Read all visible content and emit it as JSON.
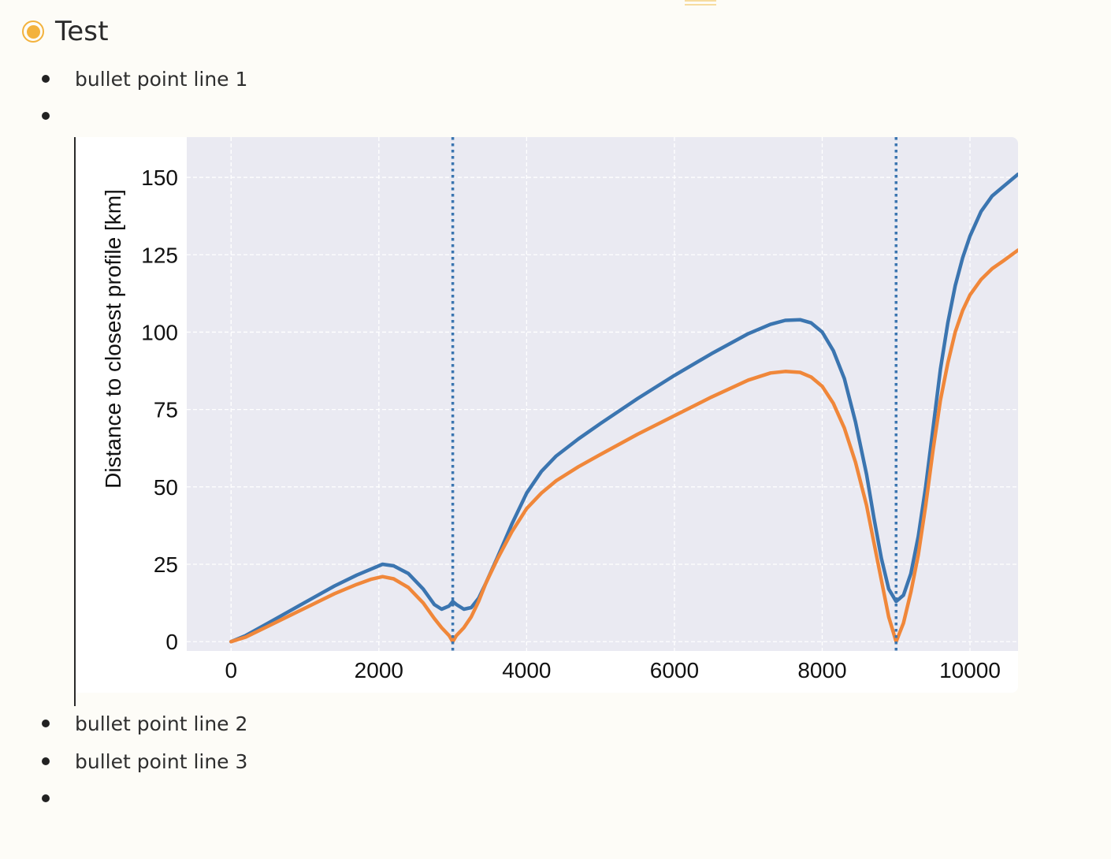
{
  "heading": {
    "title": "Test",
    "icon": "radio-circle-icon",
    "icon_color": "#f3b23d"
  },
  "bullets": [
    {
      "text": "bullet point line 1"
    },
    {
      "text": ""
    },
    {
      "text": "bullet point line 2"
    },
    {
      "text": "bullet point line 3"
    },
    {
      "text": ""
    }
  ],
  "colors": {
    "background": "#fdfcf7",
    "plot_background": "#eaeaf2",
    "series_blue": "#3b75b0",
    "series_orange": "#f0873a"
  },
  "chart_data": {
    "type": "line",
    "title": "",
    "xlabel": "",
    "ylabel": "Distance to closest profile [km]",
    "xlim": [
      -600,
      10650
    ],
    "ylim": [
      -3,
      163
    ],
    "x_ticks": [
      0,
      2000,
      4000,
      6000,
      8000,
      10000
    ],
    "y_ticks": [
      0,
      25,
      50,
      75,
      100,
      125,
      150
    ],
    "grid": true,
    "grid_style": "dashed",
    "vertical_lines": [
      3000,
      9000
    ],
    "vertical_line_style": "dotted",
    "series": [
      {
        "color": "#3b75b0",
        "x": [
          0,
          200,
          500,
          800,
          1100,
          1400,
          1700,
          1900,
          2050,
          2200,
          2400,
          2600,
          2750,
          2850,
          2950,
          3000,
          3050,
          3150,
          3250,
          3350,
          3450,
          3600,
          3800,
          4000,
          4200,
          4400,
          4700,
          5000,
          5500,
          6000,
          6500,
          7000,
          7300,
          7500,
          7700,
          7850,
          8000,
          8150,
          8300,
          8450,
          8600,
          8700,
          8800,
          8900,
          9000,
          9100,
          9200,
          9300,
          9400,
          9500,
          9600,
          9700,
          9800,
          9900,
          10000,
          10150,
          10300,
          10450,
          10650
        ],
        "y": [
          0,
          2,
          6,
          10,
          14,
          18,
          21.5,
          23.5,
          25,
          24.5,
          22,
          17,
          12,
          10.5,
          11.5,
          13,
          12,
          10.5,
          11,
          14,
          19,
          27,
          38,
          48,
          55,
          60,
          65.5,
          70.5,
          78.5,
          86,
          93,
          99.5,
          102.5,
          103.8,
          104,
          103,
          100,
          94,
          85,
          71,
          54,
          40,
          27,
          17,
          13,
          15,
          22,
          34,
          50,
          69,
          88,
          103,
          115,
          124,
          131,
          139,
          144,
          147,
          151
        ]
      },
      {
        "color": "#f0873a",
        "x": [
          0,
          200,
          500,
          800,
          1100,
          1400,
          1700,
          1900,
          2050,
          2200,
          2400,
          2600,
          2750,
          2850,
          2950,
          3000,
          3050,
          3150,
          3250,
          3350,
          3450,
          3600,
          3800,
          4000,
          4200,
          4400,
          4700,
          5000,
          5500,
          6000,
          6500,
          7000,
          7300,
          7500,
          7700,
          7850,
          8000,
          8150,
          8300,
          8450,
          8600,
          8700,
          8800,
          8900,
          9000,
          9100,
          9200,
          9300,
          9400,
          9500,
          9600,
          9700,
          9800,
          9900,
          10000,
          10150,
          10300,
          10450,
          10650
        ],
        "y": [
          0,
          1.5,
          5,
          8.5,
          12,
          15.5,
          18.5,
          20.2,
          21,
          20.3,
          17.5,
          12.5,
          7.5,
          4.5,
          2,
          0,
          2,
          4.5,
          8,
          13,
          19,
          26.5,
          35.5,
          43,
          48,
          52,
          56.5,
          60.5,
          67,
          73,
          79,
          84.5,
          86.8,
          87.3,
          87,
          85.5,
          82.5,
          77,
          69,
          58,
          44,
          32,
          20,
          8,
          0,
          6,
          16,
          28,
          44,
          62,
          78,
          90,
          100,
          107,
          112,
          117,
          120.5,
          123,
          126.5
        ]
      }
    ]
  }
}
